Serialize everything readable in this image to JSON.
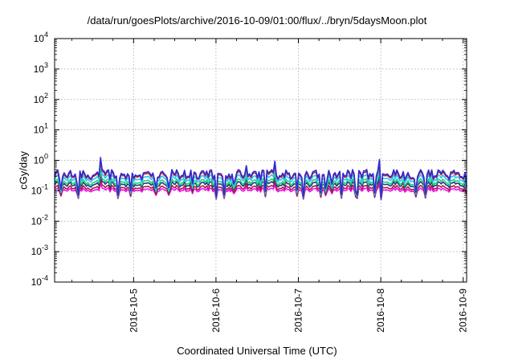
{
  "chart_data": {
    "type": "line",
    "title": "/data/run/goesPlots/archive/2016-10-09/01:00/flux/../bryn/5daysMoon.plot",
    "xlabel": "Coordinated Universal Time (UTC)",
    "ylabel": "cGy/day",
    "yscale": "log",
    "grid": true,
    "legend": "none",
    "ylim": [
      0.0001,
      10000
    ],
    "xlim": [
      "2016-10-04T01:00",
      "2016-10-09T01:00"
    ],
    "x_ticks": [
      "2016-10-5",
      "2016-10-6",
      "2016-10-7",
      "2016-10-8",
      "2016-10-9"
    ],
    "y_ticks": [
      {
        "base": "10",
        "exp": "-4"
      },
      {
        "base": "10",
        "exp": "-3"
      },
      {
        "base": "10",
        "exp": "-2"
      },
      {
        "base": "10",
        "exp": "-1"
      },
      {
        "base": "10",
        "exp": "0"
      },
      {
        "base": "10",
        "exp": "1"
      },
      {
        "base": "10",
        "exp": "2"
      },
      {
        "base": "10",
        "exp": "3"
      },
      {
        "base": "10",
        "exp": "4"
      }
    ],
    "series": [
      {
        "color": "#2b2bd6",
        "level": 0.34
      },
      {
        "color": "#d42020",
        "level": 0.31
      },
      {
        "color": "#1ec8ff",
        "level": 0.25
      },
      {
        "color": "#20d080",
        "level": 0.19
      },
      {
        "color": "#223a78",
        "level": 0.16
      },
      {
        "color": "#b01550",
        "level": 0.125
      },
      {
        "color": "#ee10ee",
        "level": 0.105
      }
    ]
  }
}
